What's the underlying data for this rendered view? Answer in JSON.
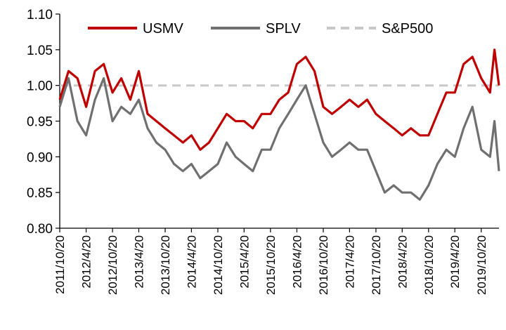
{
  "chart_data": {
    "type": "line",
    "title": "",
    "xlabel": "",
    "ylabel": "",
    "ylim": [
      0.8,
      1.1
    ],
    "yticks": [
      "0.80",
      "0.85",
      "0.90",
      "0.95",
      "1.00",
      "1.05",
      "1.10"
    ],
    "xticks": [
      "2011/10/20",
      "2012/4/20",
      "2012/10/20",
      "2013/4/20",
      "2013/10/20",
      "2014/4/20",
      "2014/10/20",
      "2015/4/20",
      "2015/10/20",
      "2016/4/20",
      "2016/10/20",
      "2017/4/20",
      "2017/10/20",
      "2018/4/20",
      "2018/10/20",
      "2019/4/20",
      "2019/10/20"
    ],
    "grid": false,
    "legend_position": "top",
    "series": [
      {
        "name": "USMV",
        "color": "#c00000",
        "style": "solid",
        "x": [
          "2011/10/20",
          "2011/12/20",
          "2012/2/20",
          "2012/4/20",
          "2012/6/20",
          "2012/8/20",
          "2012/10/20",
          "2012/12/20",
          "2013/2/20",
          "2013/4/20",
          "2013/6/20",
          "2013/8/20",
          "2013/10/20",
          "2013/12/20",
          "2014/2/20",
          "2014/4/20",
          "2014/6/20",
          "2014/8/20",
          "2014/10/20",
          "2014/12/20",
          "2015/2/20",
          "2015/4/20",
          "2015/6/20",
          "2015/8/20",
          "2015/10/20",
          "2015/12/20",
          "2016/2/20",
          "2016/4/20",
          "2016/6/20",
          "2016/8/20",
          "2016/10/20",
          "2016/12/20",
          "2017/2/20",
          "2017/4/20",
          "2017/6/20",
          "2017/8/20",
          "2017/10/20",
          "2017/12/20",
          "2018/2/20",
          "2018/4/20",
          "2018/6/20",
          "2018/8/20",
          "2018/10/20",
          "2018/12/20",
          "2019/2/20",
          "2019/4/20",
          "2019/6/20",
          "2019/8/20",
          "2019/10/20",
          "2019/12/20",
          "2020/1/20",
          "2020/2/20"
        ],
        "values": [
          0.98,
          1.02,
          1.01,
          0.97,
          1.02,
          1.03,
          0.99,
          1.01,
          0.98,
          1.02,
          0.96,
          0.95,
          0.94,
          0.93,
          0.92,
          0.93,
          0.91,
          0.92,
          0.94,
          0.96,
          0.95,
          0.95,
          0.94,
          0.96,
          0.96,
          0.98,
          0.99,
          1.03,
          1.04,
          1.02,
          0.97,
          0.96,
          0.97,
          0.98,
          0.97,
          0.98,
          0.96,
          0.95,
          0.94,
          0.93,
          0.94,
          0.93,
          0.93,
          0.96,
          0.99,
          0.99,
          1.03,
          1.04,
          1.01,
          0.99,
          1.05,
          1.0
        ]
      },
      {
        "name": "SPLV",
        "color": "#707070",
        "style": "solid",
        "x": [
          "2011/10/20",
          "2011/12/20",
          "2012/2/20",
          "2012/4/20",
          "2012/6/20",
          "2012/8/20",
          "2012/10/20",
          "2012/12/20",
          "2013/2/20",
          "2013/4/20",
          "2013/6/20",
          "2013/8/20",
          "2013/10/20",
          "2013/12/20",
          "2014/2/20",
          "2014/4/20",
          "2014/6/20",
          "2014/8/20",
          "2014/10/20",
          "2014/12/20",
          "2015/2/20",
          "2015/4/20",
          "2015/6/20",
          "2015/8/20",
          "2015/10/20",
          "2015/12/20",
          "2016/2/20",
          "2016/4/20",
          "2016/6/20",
          "2016/8/20",
          "2016/10/20",
          "2016/12/20",
          "2017/2/20",
          "2017/4/20",
          "2017/6/20",
          "2017/8/20",
          "2017/10/20",
          "2017/12/20",
          "2018/2/20",
          "2018/4/20",
          "2018/6/20",
          "2018/8/20",
          "2018/10/20",
          "2018/12/20",
          "2019/2/20",
          "2019/4/20",
          "2019/6/20",
          "2019/8/20",
          "2019/10/20",
          "2019/12/20",
          "2020/1/20",
          "2020/2/20"
        ],
        "values": [
          0.97,
          1.01,
          0.95,
          0.93,
          0.98,
          1.01,
          0.95,
          0.97,
          0.96,
          0.98,
          0.94,
          0.92,
          0.91,
          0.89,
          0.88,
          0.89,
          0.87,
          0.88,
          0.89,
          0.92,
          0.9,
          0.89,
          0.88,
          0.91,
          0.91,
          0.94,
          0.96,
          0.98,
          1.0,
          0.96,
          0.92,
          0.9,
          0.91,
          0.92,
          0.91,
          0.91,
          0.88,
          0.85,
          0.86,
          0.85,
          0.85,
          0.84,
          0.86,
          0.89,
          0.91,
          0.9,
          0.94,
          0.97,
          0.91,
          0.9,
          0.95,
          0.88
        ]
      },
      {
        "name": "S&P500",
        "color": "#c8c8c8",
        "style": "dashed",
        "x": [
          "2011/10/20",
          "2020/2/20"
        ],
        "values": [
          1.0,
          1.0
        ]
      }
    ]
  }
}
